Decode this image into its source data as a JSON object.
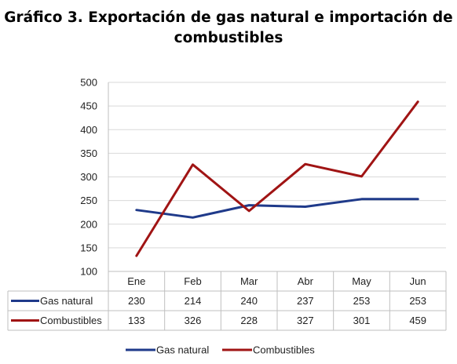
{
  "chart_data": {
    "type": "line",
    "title_line1": "Gráfico 3. Exportación de gas natural e importación de",
    "title_line2": "combustibles",
    "categories": [
      "Ene",
      "Feb",
      "Mar",
      "Abr",
      "May",
      "Jun"
    ],
    "series": [
      {
        "name": "Gas natural",
        "color": "#1f3a8a",
        "values": [
          230,
          214,
          240,
          237,
          253,
          253
        ]
      },
      {
        "name": "Combustibles",
        "color": "#a01414",
        "values": [
          133,
          326,
          228,
          327,
          301,
          459
        ]
      }
    ],
    "ylim": [
      100,
      500
    ],
    "yticks": [
      100,
      150,
      200,
      250,
      300,
      350,
      400,
      450,
      500
    ],
    "grid": true,
    "legend_position": "bottom",
    "data_table": true
  }
}
